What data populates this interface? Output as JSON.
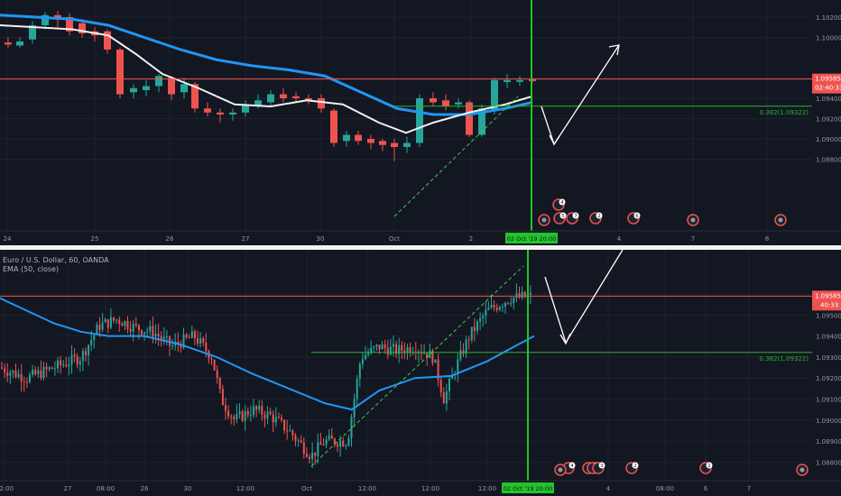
{
  "colors": {
    "background": "#131722",
    "up_candle": "#26a69a",
    "down_candle": "#ef5350",
    "ema_blue": "#2196f3",
    "ma_white": "#f0f0f0",
    "cursor_green": "#22c42a",
    "fib_green": "#2bb52b",
    "price_line": "#ef5350",
    "axis_text": "#9598a1"
  },
  "top_chart": {
    "price_axis_labels": [
      "1.10200",
      "1.10000",
      "1.09600",
      "1.09400",
      "1.09200",
      "1.09000",
      "1.08800"
    ],
    "price_axis_values": [
      1.102,
      1.1,
      1.096,
      1.094,
      1.092,
      1.09,
      1.088
    ],
    "last_price": "1.09585",
    "countdown": "02:40:33",
    "date_labels": [
      "24",
      "25",
      "26",
      "27",
      "30",
      "Oct",
      "2",
      "4",
      "7",
      "8"
    ],
    "date_label_x": [
      8,
      105,
      188,
      272,
      355,
      437,
      522,
      686,
      768,
      850
    ],
    "cursor_label": "02 Oct '19  20:00",
    "fib_label": "0.382(1.09322)",
    "event_markers": [
      "4",
      "5",
      "7",
      "2",
      "6"
    ]
  },
  "bottom_chart": {
    "legend_symbol": "Euro / U.S. Dollar, 60, OANDA",
    "legend_indicator": "EMA (50, close)",
    "price_axis_labels": [
      "1.09600",
      "1.09500",
      "1.09400",
      "1.09300",
      "1.09200",
      "1.09100",
      "1.09000",
      "1.08900",
      "1.08800"
    ],
    "last_price": "1.09585",
    "countdown": "40:33",
    "time_labels": [
      "12:00",
      "27",
      "08:00",
      "26",
      "30",
      "12:00",
      "Oct",
      "12:00",
      "12:00",
      "12:00",
      "4",
      "08:00",
      "6",
      "7"
    ],
    "time_label_x": [
      5,
      75,
      117,
      160,
      208,
      272,
      340,
      407,
      477,
      540,
      674,
      737,
      782,
      830
    ],
    "cursor_label": "02 Oct '19  20:00",
    "fib_label": "0.382(1.09322)",
    "event_markers": [
      "4",
      "2",
      "1",
      "3",
      "2",
      "2"
    ]
  }
}
